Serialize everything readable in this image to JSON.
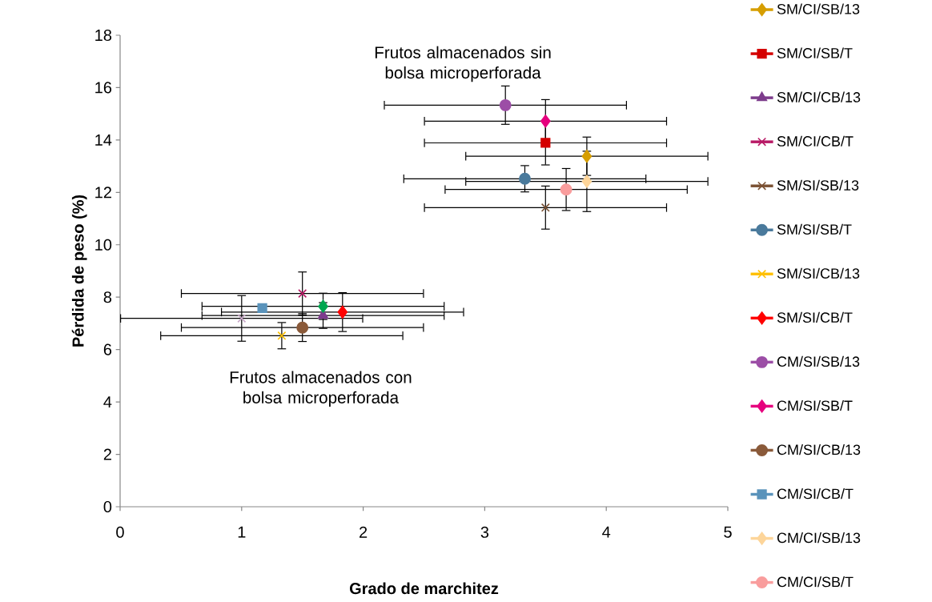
{
  "chart_data": {
    "type": "scatter",
    "xlabel": "Grado de marchitez",
    "ylabel": "Pérdida de peso (%)",
    "xlim": [
      0,
      5
    ],
    "ylim": [
      0,
      18
    ],
    "xticks": [
      0,
      1,
      2,
      3,
      4,
      5
    ],
    "yticks": [
      0,
      2,
      4,
      6,
      8,
      10,
      12,
      14,
      16,
      18
    ],
    "grid": false,
    "legend": "right",
    "annotations": [
      "Frutos almacenados sin bolsa microperforada",
      "Frutos almacenados con bolsa microperforada"
    ],
    "series": [
      {
        "name": "SM/CI/SB/13",
        "color": "#d69e00",
        "marker": "diamond",
        "x": [
          3.84
        ],
        "values": [
          13.38
        ],
        "errors": [
          0.75
        ],
        "xerrors": [
          1.0
        ]
      },
      {
        "name": "SM/CI/SB/T",
        "color": "#d40000",
        "marker": "square",
        "x": [
          3.5
        ],
        "values": [
          13.89
        ],
        "errors": [
          0.86
        ],
        "xerrors": [
          1.0
        ]
      },
      {
        "name": "SM/CI/CB/13",
        "color": "#7d3c8c",
        "marker": "triangle",
        "x": [
          1.67
        ],
        "values": [
          7.3
        ],
        "errors": [
          0.51
        ],
        "xerrors": [
          1.0
        ]
      },
      {
        "name": "SM/CI/CB/T",
        "color": "#b81a66",
        "marker": "cross",
        "x": [
          1.5
        ],
        "values": [
          8.14
        ],
        "errors": [
          0.84
        ],
        "xerrors": [
          1.0
        ]
      },
      {
        "name": "SM/SI/SB/13",
        "color": "#7b5234",
        "marker": "cross",
        "x": [
          3.5
        ],
        "values": [
          11.42
        ],
        "errors": [
          0.84
        ],
        "xerrors": [
          1.0
        ]
      },
      {
        "name": "SM/SI/SB/T",
        "color": "#4a7a9c",
        "marker": "circle",
        "x": [
          3.33
        ],
        "values": [
          12.52
        ],
        "errors": [
          0.52
        ],
        "xerrors": [
          1.0
        ]
      },
      {
        "name": "SM/SI/CB/13",
        "color": "#ffc000",
        "marker": "cross",
        "x": [
          1.33
        ],
        "values": [
          6.53
        ],
        "errors": [
          0.52
        ],
        "xerrors": [
          1.0
        ]
      },
      {
        "name": "SM/SI/CB/T",
        "color": "#ff0000",
        "marker": "diamond",
        "x": [
          1.83
        ],
        "values": [
          7.43
        ],
        "errors": [
          0.76
        ],
        "xerrors": [
          1.0
        ]
      },
      {
        "name": "CM/SI/SB/13",
        "color": "#9c4ea6",
        "marker": "circle",
        "x": [
          3.17
        ],
        "values": [
          15.33
        ],
        "errors": [
          0.75
        ],
        "xerrors": [
          1.0
        ]
      },
      {
        "name": "CM/SI/SB/T",
        "color": "#e6007e",
        "marker": "diamond",
        "x": [
          3.5
        ],
        "values": [
          14.72
        ],
        "errors": [
          0.84
        ],
        "xerrors": [
          1.0
        ]
      },
      {
        "name": "CM/SI/CB/13",
        "color": "#8a5a3a",
        "marker": "circle",
        "x": [
          1.5
        ],
        "values": [
          6.84
        ],
        "errors": [
          0.55
        ],
        "xerrors": [
          1.0
        ]
      },
      {
        "name": "CM/SI/CB/T",
        "color": "#5a93bb",
        "marker": "square",
        "x": [
          1.17
        ],
        "values": [
          7.58
        ],
        "errors": [
          null
        ],
        "xerrors": [
          null
        ]
      },
      {
        "name": "CM/CI/SB/13",
        "color": "#fdd59a",
        "marker": "diamond",
        "x": [
          3.84
        ],
        "values": [
          12.42
        ],
        "errors": [
          1.17
        ],
        "xerrors": [
          1.0
        ]
      },
      {
        "name": "CM/CI/SB/T",
        "color": "#f99d9d",
        "marker": "circle",
        "x": [
          3.67
        ],
        "values": [
          12.11
        ],
        "errors": [
          0.82
        ],
        "xerrors": [
          1.0
        ]
      },
      {
        "color": "#00a650",
        "marker": "diamond",
        "x": [
          1.67
        ],
        "values": [
          7.65
        ],
        "errors": [
          0.52
        ],
        "xerrors": [
          1.0
        ]
      },
      {
        "color": "#c8a8c8",
        "marker": "cross",
        "x": [
          1.0
        ],
        "values": [
          7.19
        ],
        "errors": [
          0.89
        ],
        "xerrors": [
          1.0
        ]
      }
    ]
  }
}
